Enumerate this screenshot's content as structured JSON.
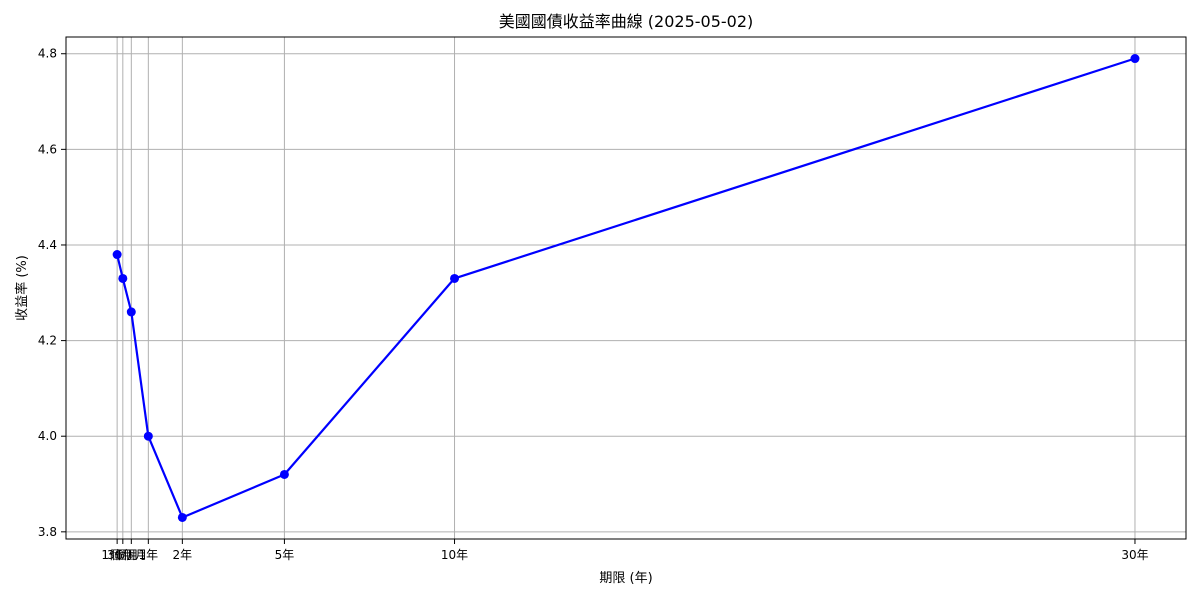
{
  "chart_data": {
    "type": "line",
    "title": "美國國債收益率曲線 (2025-05-02)",
    "xlabel": "期限 (年)",
    "ylabel": "收益率 (%)",
    "x": [
      0.083,
      0.25,
      0.5,
      1,
      2,
      5,
      10,
      30
    ],
    "x_tick_labels": [
      "1個月",
      "3個月",
      "6個月",
      "1年",
      "2年",
      "5年",
      "10年",
      "30年"
    ],
    "series": [
      {
        "values": [
          4.38,
          4.33,
          4.26,
          4.0,
          3.83,
          3.92,
          4.33,
          4.79
        ],
        "color": "#0000ff"
      }
    ],
    "y_ticks": [
      3.8,
      4.0,
      4.2,
      4.4,
      4.6,
      4.8
    ],
    "y_tick_labels": [
      "3.8",
      "4.0",
      "4.2",
      "4.4",
      "4.6",
      "4.8"
    ],
    "xlim": [
      -1.42,
      31.5
    ],
    "ylim": [
      3.785,
      4.835
    ],
    "grid": true,
    "marker": "circle"
  }
}
